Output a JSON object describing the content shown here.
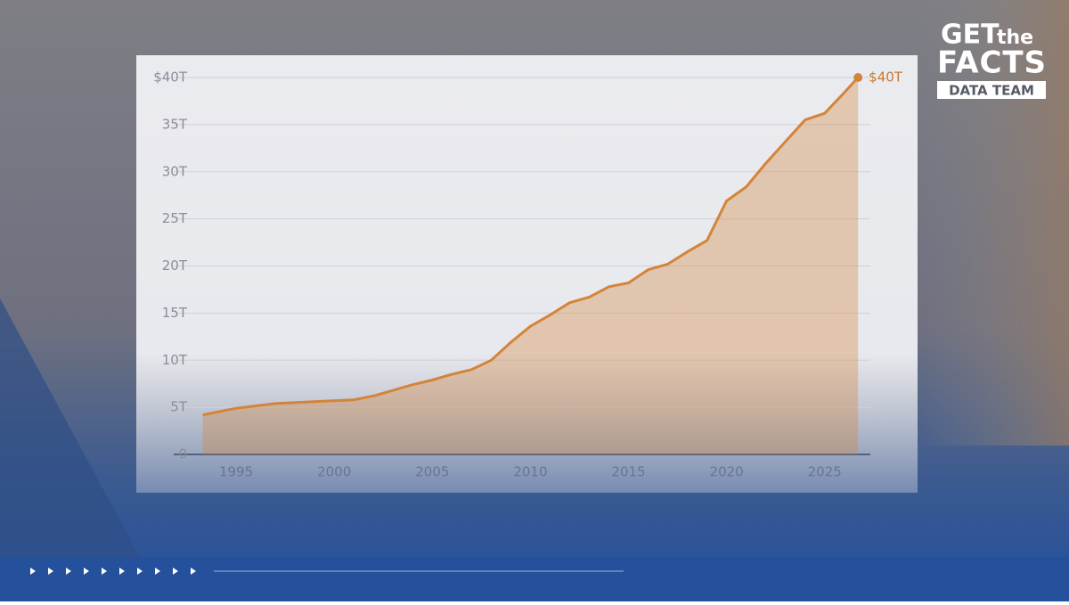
{
  "chart_data": {
    "type": "area",
    "x": [
      1993.3,
      1995,
      1997,
      1999,
      2000,
      2001,
      2002,
      2003,
      2004,
      2005,
      2006,
      2007,
      2008,
      2009,
      2010,
      2011,
      2012,
      2013,
      2014,
      2015,
      2016,
      2017,
      2018,
      2019,
      2020,
      2021,
      2022,
      2023,
      2024,
      2025,
      2026,
      2026.7
    ],
    "values": [
      4.2,
      4.9,
      5.4,
      5.6,
      5.7,
      5.8,
      6.2,
      6.8,
      7.4,
      7.9,
      8.5,
      9.0,
      10.0,
      11.9,
      13.6,
      14.8,
      16.1,
      16.7,
      17.8,
      18.2,
      19.6,
      20.2,
      21.5,
      22.7,
      26.9,
      28.4,
      30.9,
      33.2,
      35.5,
      36.2,
      38.4,
      40
    ],
    "value_labels": [
      null,
      null,
      null,
      null,
      null,
      null,
      null,
      null,
      null,
      null,
      null,
      null,
      null,
      null,
      null,
      null,
      null,
      null,
      null,
      null,
      null,
      null,
      null,
      null,
      null,
      null,
      null,
      null,
      null,
      null,
      null,
      "$40T"
    ],
    "color": "#d4843a",
    "xlim": [
      1991.5,
      2027.6
    ],
    "xticks": [
      1995,
      2000,
      2005,
      2010,
      2015,
      2020,
      2025
    ],
    "ylim": [
      0,
      40
    ],
    "yticks": [
      0,
      {
        "value": 5,
        "label": "5T"
      },
      {
        "value": 10,
        "label": "10T"
      },
      {
        "value": 15,
        "label": "15T"
      },
      {
        "value": 20,
        "label": "20T"
      },
      {
        "value": 25,
        "label": "25T"
      },
      {
        "value": 30,
        "label": "30T"
      },
      {
        "value": 35,
        "label": "35T"
      },
      {
        "value": 40,
        "label": "$40T"
      }
    ],
    "grid": true
  },
  "logo": {
    "get": "GET",
    "the": "the",
    "facts": "FACTS",
    "team": "DATA TEAM"
  }
}
